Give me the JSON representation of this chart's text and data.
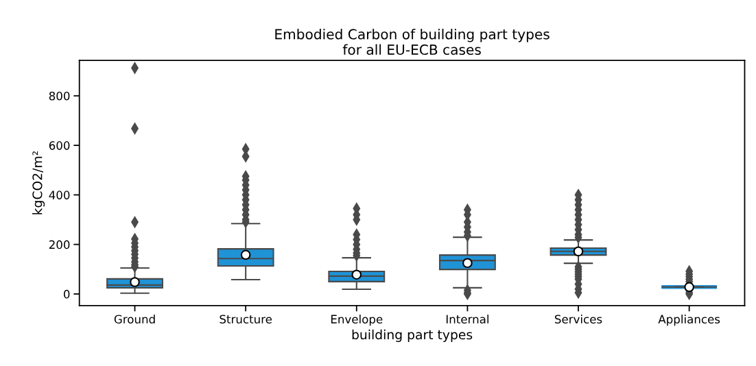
{
  "chart_data": {
    "type": "box",
    "title": "Embodied Carbon of building part types\nfor all EU-ECB cases",
    "xlabel": "building part types",
    "ylabel": "kgCO2/m²",
    "categories": [
      "Ground",
      "Structure",
      "Envelope",
      "Internal",
      "Services",
      "Appliances"
    ],
    "color": "#1f93d6",
    "boxes": [
      {
        "low": 3,
        "q1": 25,
        "median": 36,
        "q3": 61,
        "high": 105,
        "mean": 48,
        "outliers": [
          912,
          668,
          290,
          222,
          205,
          190,
          175,
          160,
          145,
          130,
          118,
          110
        ]
      },
      {
        "low": 58,
        "q1": 113,
        "median": 143,
        "q3": 182,
        "high": 284,
        "mean": 158,
        "outliers": [
          585,
          555,
          475,
          460,
          440,
          420,
          400,
          380,
          360,
          340,
          320,
          300,
          290
        ]
      },
      {
        "low": 19,
        "q1": 50,
        "median": 72,
        "q3": 91,
        "high": 146,
        "mean": 78,
        "outliers": [
          345,
          320,
          300,
          240,
          220,
          200,
          180,
          165,
          155
        ]
      },
      {
        "low": 25,
        "q1": 99,
        "median": 135,
        "q3": 157,
        "high": 229,
        "mean": 125,
        "outliers": [
          340,
          320,
          290,
          270,
          250,
          235,
          15,
          5,
          0
        ]
      },
      {
        "low": 124,
        "q1": 157,
        "median": 172,
        "q3": 185,
        "high": 218,
        "mean": 172,
        "outliers": [
          400,
          380,
          360,
          340,
          320,
          300,
          280,
          260,
          240,
          228,
          110,
          100,
          90,
          80,
          70,
          60,
          40,
          20,
          5
        ]
      },
      {
        "low": 28,
        "q1": 28,
        "median": 28,
        "q3": 28,
        "high": 28,
        "mean": 28,
        "outliers": [
          92,
          80,
          70,
          60,
          50,
          40,
          15,
          5,
          0
        ]
      }
    ],
    "ylim": [
      -47,
      943
    ],
    "yticks": [
      0,
      200,
      400,
      600,
      800
    ],
    "grid": false
  }
}
